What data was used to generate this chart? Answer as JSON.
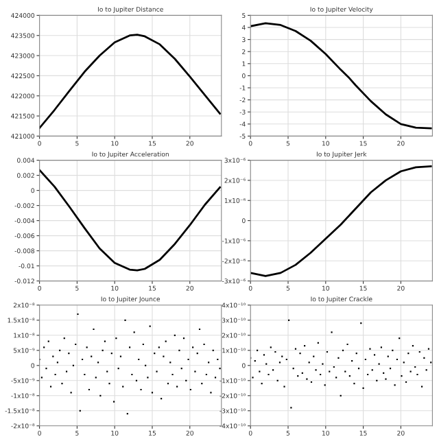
{
  "chart_data": [
    {
      "type": "line",
      "title": "Io to Jupiter Distance",
      "grid": true,
      "marker": "none",
      "line_style": "solid",
      "xlim": [
        0,
        24.2
      ],
      "xticks": [
        0,
        5,
        10,
        15,
        20
      ],
      "ylim": [
        421000,
        424000
      ],
      "yticks": [
        421000,
        421500,
        422000,
        422500,
        423000,
        423500,
        424000
      ],
      "series": [
        {
          "color": "#000000",
          "x": [
            0,
            2,
            4,
            6,
            8,
            10,
            12,
            13,
            14,
            16,
            18,
            20,
            22,
            24
          ],
          "values": [
            421200,
            421650,
            422130,
            422600,
            423000,
            423330,
            423500,
            423520,
            423480,
            423280,
            422920,
            422480,
            422020,
            421560
          ]
        }
      ]
    },
    {
      "type": "line",
      "title": "Io to Jupiter Velocity",
      "grid": true,
      "marker": "none",
      "line_style": "solid",
      "xlim": [
        0,
        24.2
      ],
      "xticks": [
        0,
        5,
        10,
        15,
        20
      ],
      "ylim": [
        -5,
        5
      ],
      "yticks": [
        -5,
        -4,
        -3,
        -2,
        -1,
        0,
        1,
        2,
        3,
        4,
        5
      ],
      "series": [
        {
          "color": "#000000",
          "x": [
            0,
            2,
            4,
            6,
            8,
            10,
            12,
            13,
            14,
            16,
            18,
            20,
            22,
            24
          ],
          "values": [
            4.1,
            4.35,
            4.2,
            3.7,
            2.9,
            1.8,
            0.5,
            -0.1,
            -0.8,
            -2.1,
            -3.2,
            -4.0,
            -4.3,
            -4.35
          ]
        }
      ]
    },
    {
      "type": "line",
      "title": "Io to Jupiter Acceleration",
      "grid": true,
      "marker": "none",
      "line_style": "solid",
      "xlim": [
        0,
        24.2
      ],
      "xticks": [
        0,
        5,
        10,
        15,
        20
      ],
      "ylim": [
        -0.012,
        0.004
      ],
      "yticks": [
        -0.012,
        -0.01,
        -0.008,
        -0.006,
        -0.004,
        -0.002,
        0,
        0.002,
        0.004
      ],
      "series": [
        {
          "color": "#000000",
          "x": [
            0,
            2,
            4,
            6,
            8,
            10,
            12,
            13,
            14,
            16,
            18,
            20,
            22,
            24
          ],
          "values": [
            0.0027,
            0.0005,
            -0.0022,
            -0.005,
            -0.0077,
            -0.0096,
            -0.0105,
            -0.0106,
            -0.0104,
            -0.0092,
            -0.0071,
            -0.0046,
            -0.0019,
            0.0004
          ]
        }
      ]
    },
    {
      "type": "line",
      "title": "Io to Jupiter Jerk",
      "grid": true,
      "marker": "none",
      "line_style": "solid",
      "xlim": [
        0,
        24.2
      ],
      "xticks": [
        0,
        5,
        10,
        15,
        20
      ],
      "ylim": [
        -3e-06,
        3e-06
      ],
      "yticks": [
        {
          "value": -3e-06,
          "label": "-3x10⁻⁶"
        },
        {
          "value": -2e-06,
          "label": "-2x10⁻⁶"
        },
        {
          "value": -1e-06,
          "label": "-1x10⁻⁶"
        },
        0,
        {
          "value": 1e-06,
          "label": "1x10⁻⁶"
        },
        {
          "value": 2e-06,
          "label": "2x10⁻⁶"
        },
        {
          "value": 3e-06,
          "label": "3x10⁻⁶"
        }
      ],
      "series": [
        {
          "color": "#000000",
          "x": [
            0,
            2,
            4,
            6,
            8,
            10,
            12,
            14,
            16,
            18,
            20,
            22,
            24
          ],
          "values": [
            -2.6e-06,
            -2.75e-06,
            -2.6e-06,
            -2.2e-06,
            -1.6e-06,
            -9e-07,
            -2e-07,
            6e-07,
            1.4e-06,
            2e-06,
            2.45e-06,
            2.65e-06,
            2.7e-06
          ]
        }
      ]
    },
    {
      "type": "scatter",
      "title": "Io to Jupiter Jounce",
      "grid": true,
      "marker": "square",
      "xlim": [
        0,
        24.2
      ],
      "xticks": [
        0,
        5,
        10,
        15,
        20
      ],
      "ylim": [
        -2e-08,
        2e-08
      ],
      "yticks": [
        {
          "value": -2e-08,
          "label": "-2x10⁻⁸"
        },
        {
          "value": -1.5e-08,
          "label": "-1.5x10⁻⁸"
        },
        {
          "value": -1e-08,
          "label": "-1x10⁻⁸"
        },
        {
          "value": -5e-09,
          "label": "-5x10⁻⁹"
        },
        0,
        {
          "value": 5e-09,
          "label": "5x10⁻⁹"
        },
        {
          "value": 1e-08,
          "label": "1x10⁻⁸"
        },
        {
          "value": 1.5e-08,
          "label": "1.5x10⁻⁸"
        },
        {
          "value": 2e-08,
          "label": "2x10⁻⁸"
        }
      ],
      "series": [
        {
          "color": "#000000",
          "x": [
            0,
            0.3,
            0.6,
            0.9,
            1.2,
            1.5,
            1.8,
            2.1,
            2.4,
            2.7,
            3,
            3.3,
            3.6,
            3.9,
            4.2,
            4.5,
            4.8,
            5.1,
            5.4,
            5.7,
            6,
            6.3,
            6.6,
            6.9,
            7.2,
            7.5,
            7.8,
            8.1,
            8.4,
            8.7,
            9,
            9.3,
            9.6,
            9.9,
            10.2,
            10.5,
            10.8,
            11.1,
            11.4,
            11.7,
            12,
            12.3,
            12.6,
            12.9,
            13.2,
            13.5,
            13.8,
            14.1,
            14.4,
            14.7,
            15,
            15.3,
            15.6,
            15.9,
            16.2,
            16.5,
            16.8,
            17.1,
            17.4,
            17.7,
            18,
            18.3,
            18.6,
            18.9,
            19.2,
            19.5,
            19.8,
            20.1,
            20.4,
            20.7,
            21,
            21.3,
            21.6,
            21.9,
            22.2,
            22.5,
            22.8,
            23.1,
            23.4,
            23.7,
            24
          ],
          "values": [
            2e-09,
            -4e-09,
            6e-09,
            -1e-09,
            8e-09,
            -7e-09,
            3e-09,
            -3e-09,
            1e-09,
            5e-09,
            -6e-09,
            9e-09,
            -2e-09,
            4e-09,
            -9e-09,
            0,
            7e-09,
            1.7e-08,
            -1.5e-08,
            2e-09,
            -3e-09,
            6e-09,
            -8e-09,
            3e-09,
            1.2e-08,
            -4e-09,
            1e-09,
            -1e-08,
            5e-09,
            8e-09,
            -2e-09,
            -6e-09,
            4e-09,
            -1.2e-08,
            9e-09,
            -1e-09,
            3e-09,
            -7e-09,
            1.5e-08,
            -1.6e-08,
            6e-09,
            -3e-09,
            1.1e-08,
            -5e-09,
            2e-09,
            -8e-09,
            7e-09,
            0,
            -4e-09,
            1.3e-08,
            -9e-09,
            4e-09,
            -2e-09,
            6e-09,
            -1.1e-08,
            3e-09,
            8e-09,
            -6e-09,
            1e-09,
            -3e-09,
            1e-08,
            -7e-09,
            5e-09,
            -1e-09,
            9e-09,
            -5e-09,
            2e-09,
            -8e-09,
            6e-09,
            -2e-09,
            4e-09,
            1.2e-08,
            -6e-09,
            7e-09,
            -3e-09,
            1e-09,
            -9e-09,
            5e-09,
            -4e-09,
            2e-09,
            -1e-09
          ]
        }
      ]
    },
    {
      "type": "scatter",
      "title": "Io to Jupiter Crackle",
      "grid": true,
      "marker": "square",
      "xlim": [
        0,
        24.2
      ],
      "xticks": [
        0,
        5,
        10,
        15,
        20
      ],
      "ylim": [
        -4e-10,
        4e-10
      ],
      "yticks": [
        {
          "value": -4e-10,
          "label": "-4x10⁻¹⁰"
        },
        {
          "value": -3e-10,
          "label": "-3x10⁻¹⁰"
        },
        {
          "value": -2e-10,
          "label": "-2x10⁻¹⁰"
        },
        {
          "value": -1e-10,
          "label": "-1x10⁻¹⁰"
        },
        0,
        {
          "value": 1e-10,
          "label": "1x10⁻¹⁰"
        },
        {
          "value": 2e-10,
          "label": "2x10⁻¹⁰"
        },
        {
          "value": 3e-10,
          "label": "3x10⁻¹⁰"
        },
        {
          "value": 4e-10,
          "label": "4x10⁻¹⁰"
        }
      ],
      "series": [
        {
          "color": "#000000",
          "x": [
            0,
            0.3,
            0.6,
            0.9,
            1.2,
            1.5,
            1.8,
            2.1,
            2.4,
            2.7,
            3,
            3.3,
            3.6,
            3.9,
            4.2,
            4.5,
            4.8,
            5.1,
            5.4,
            5.7,
            6,
            6.3,
            6.6,
            6.9,
            7.2,
            7.5,
            7.8,
            8.1,
            8.4,
            8.7,
            9,
            9.3,
            9.6,
            9.9,
            10.2,
            10.5,
            10.8,
            11.1,
            11.4,
            11.7,
            12,
            12.3,
            12.6,
            12.9,
            13.2,
            13.5,
            13.8,
            14.1,
            14.4,
            14.7,
            15,
            15.3,
            15.6,
            15.9,
            16.2,
            16.5,
            16.8,
            17.1,
            17.4,
            17.7,
            18,
            18.3,
            18.6,
            18.9,
            19.2,
            19.5,
            19.8,
            20.1,
            20.4,
            20.7,
            21,
            21.3,
            21.6,
            21.9,
            22.2,
            22.5,
            22.8,
            23.1,
            23.4,
            23.7,
            24
          ],
          "values": [
            5e-11,
            -8e-11,
            3e-11,
            1e-10,
            -4e-11,
            -1.2e-10,
            7e-11,
            1e-11,
            -6e-11,
            1.2e-10,
            -3e-11,
            9e-11,
            -1e-10,
            2e-11,
            6e-11,
            -1.4e-10,
            4e-11,
            3e-10,
            -2.8e-10,
            -2e-11,
            1.1e-10,
            -7e-11,
            8e-11,
            -5e-11,
            1.3e-10,
            -9e-11,
            2e-11,
            -1.1e-10,
            6e-11,
            -3e-11,
            1.5e-10,
            -6e-11,
            1e-11,
            -1.3e-10,
            9e-11,
            -4e-11,
            2.2e-10,
            -1e-11,
            -8e-11,
            5e-11,
            -2e-10,
            1e-10,
            -4e-11,
            1.4e-10,
            -7e-11,
            3e-11,
            -1.2e-10,
            8e-11,
            -2e-11,
            2.8e-10,
            -1.5e-10,
            4e-11,
            -6e-11,
            1.1e-10,
            -3e-11,
            7e-11,
            -1e-10,
            1e-11,
            1.2e-10,
            -5e-11,
            -9e-11,
            6e-11,
            -2e-11,
            1e-10,
            -1.3e-10,
            4e-11,
            1.8e-10,
            -7e-11,
            2e-11,
            -1.1e-10,
            8e-11,
            -4e-11,
            1.3e-10,
            -1e-11,
            -6e-11,
            9e-11,
            -1.4e-10,
            5e-11,
            -3e-11,
            1.1e-10,
            2e-11
          ]
        }
      ]
    }
  ]
}
